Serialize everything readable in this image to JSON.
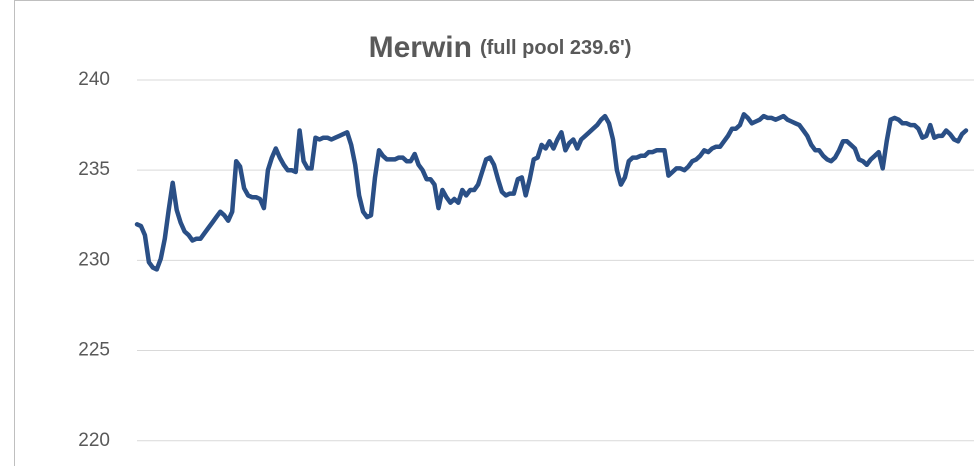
{
  "chart_data": {
    "type": "line",
    "title": "Merwin",
    "subtitle": "(full pool 239.6')",
    "series": [
      {
        "color": "#2a4f86",
        "values": [
          232.0,
          231.9,
          231.4,
          229.9,
          229.6,
          229.5,
          230.1,
          231.2,
          232.8,
          234.3,
          232.8,
          232.1,
          231.6,
          231.4,
          231.1,
          231.2,
          231.2,
          231.5,
          231.8,
          232.1,
          232.4,
          232.7,
          232.5,
          232.2,
          232.7,
          235.5,
          235.2,
          234.0,
          233.6,
          233.5,
          233.5,
          233.4,
          232.9,
          235.0,
          235.7,
          236.2,
          235.7,
          235.3,
          235.0,
          235.0,
          234.9,
          237.2,
          235.5,
          235.1,
          235.1,
          236.8,
          236.7,
          236.8,
          236.8,
          236.7,
          236.8,
          236.9,
          237.0,
          237.1,
          236.4,
          235.3,
          233.6,
          232.7,
          232.4,
          232.5,
          234.6,
          236.1,
          235.8,
          235.6,
          235.6,
          235.6,
          235.7,
          235.7,
          235.5,
          235.5,
          235.9,
          235.3,
          235.0,
          234.5,
          234.5,
          234.2,
          232.9,
          233.9,
          233.5,
          233.2,
          233.4,
          233.2,
          233.9,
          233.6,
          233.9,
          233.9,
          234.2,
          234.9,
          235.6,
          235.7,
          235.3,
          234.5,
          233.8,
          233.6,
          233.7,
          233.7,
          234.5,
          234.6,
          233.6,
          234.5,
          235.6,
          235.7,
          236.4,
          236.2,
          236.6,
          236.2,
          236.7,
          237.1,
          236.1,
          236.5,
          236.7,
          236.2,
          236.7,
          236.9,
          237.1,
          237.3,
          237.5,
          237.8,
          238.0,
          237.6,
          236.7,
          235.0,
          234.2,
          234.6,
          235.5,
          235.7,
          235.7,
          235.8,
          235.8,
          236.0,
          236.0,
          236.1,
          236.1,
          236.1,
          234.7,
          234.9,
          235.1,
          235.1,
          235.0,
          235.2,
          235.5,
          235.6,
          235.8,
          236.1,
          236.0,
          236.2,
          236.3,
          236.3,
          236.6,
          236.9,
          237.3,
          237.3,
          237.5,
          238.1,
          237.9,
          237.6,
          237.7,
          237.8,
          238.0,
          237.9,
          237.9,
          237.8,
          237.9,
          238.0,
          237.8,
          237.7,
          237.6,
          237.5,
          237.2,
          236.9,
          236.4,
          236.1,
          236.1,
          235.8,
          235.6,
          235.5,
          235.7,
          236.1,
          236.6,
          236.6,
          236.4,
          236.2,
          235.6,
          235.5,
          235.3,
          235.6,
          235.8,
          236.0,
          235.1,
          236.6,
          237.8,
          237.9,
          237.8,
          237.6,
          237.6,
          237.5,
          237.5,
          237.3,
          236.8,
          236.9,
          237.5,
          236.8,
          236.9,
          236.9,
          237.2,
          237.0,
          236.7,
          236.6,
          237.0,
          237.2
        ]
      }
    ],
    "ylim": [
      218.6,
      240
    ],
    "yticks": [
      220,
      225,
      230,
      235,
      240
    ],
    "grid": true
  }
}
